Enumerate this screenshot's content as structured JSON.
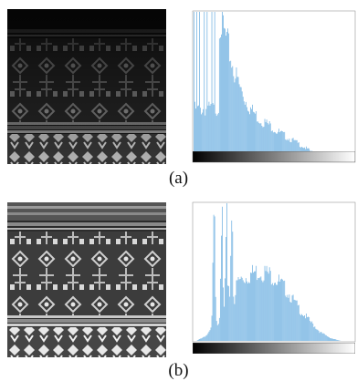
{
  "panels": [
    {
      "caption": "(a)",
      "image_icon": "dark-ikat-textile-image",
      "histogram": {
        "color": "#6aaee0",
        "profile": "dark-skewed",
        "values": [
          1.0,
          1.0,
          1.0,
          1.0,
          1.0,
          1.0,
          1.0,
          1.0,
          1.0,
          1.0,
          0.97,
          0.92,
          0.85,
          0.8,
          0.74,
          0.66,
          0.6,
          0.55,
          0.5,
          0.46,
          0.42,
          0.39,
          0.36,
          0.34,
          0.32,
          0.3,
          0.28,
          0.27,
          0.26,
          0.25,
          0.24,
          0.23,
          0.21,
          0.2,
          0.19,
          0.18,
          0.17,
          0.16,
          0.15,
          0.14,
          0.13,
          0.12,
          0.11,
          0.1,
          0.09,
          0.08,
          0.07,
          0.06,
          0.05,
          0.04,
          0.03,
          0.025,
          0.02,
          0.015,
          0.01,
          0.008,
          0.006,
          0.005,
          0.004,
          0.003,
          0.002,
          0.001,
          0.0,
          0.0
        ]
      }
    },
    {
      "caption": "(b)",
      "image_icon": "enhanced-ikat-textile-image",
      "histogram": {
        "color": "#6aaee0",
        "profile": "spread",
        "values": [
          0.0,
          0.0,
          0.01,
          0.02,
          0.03,
          0.04,
          0.06,
          0.1,
          1.0,
          0.12,
          0.14,
          1.0,
          0.18,
          1.0,
          0.22,
          1.0,
          0.3,
          0.42,
          0.44,
          0.45,
          0.46,
          0.47,
          0.48,
          0.49,
          0.5,
          0.5,
          0.51,
          0.5,
          0.5,
          0.49,
          0.48,
          0.47,
          0.46,
          0.44,
          0.42,
          0.4,
          0.38,
          0.36,
          0.33,
          0.3,
          0.27,
          0.25,
          0.22,
          0.2,
          0.18,
          0.16,
          0.14,
          0.12,
          0.1,
          0.08,
          0.06,
          0.05,
          0.04,
          0.03,
          0.02,
          0.015,
          0.01,
          0.005,
          0.0,
          0.0,
          0.0,
          0.0,
          0.0,
          0.0
        ]
      }
    }
  ]
}
